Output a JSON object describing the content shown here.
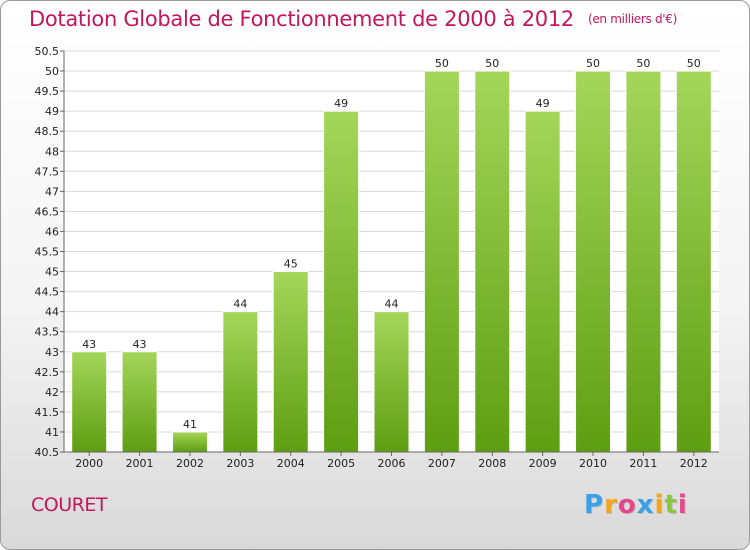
{
  "header": {
    "title": "Dotation Globale de Fonctionnement de 2000 à 2012",
    "unit_note": "(en milliers d'€)"
  },
  "footer": {
    "commune": "COURET",
    "logo_letters": [
      "P",
      "r",
      "o",
      "x",
      "i",
      "t",
      "i"
    ],
    "logo_colors": [
      "#3aa0e8",
      "#f2a516",
      "#e8468a",
      "#3aa0e8",
      "#f2a516",
      "#8cc63f",
      "#e8468a"
    ]
  },
  "chart_data": {
    "type": "bar",
    "categories": [
      "2000",
      "2001",
      "2002",
      "2003",
      "2004",
      "2005",
      "2006",
      "2007",
      "2008",
      "2009",
      "2010",
      "2011",
      "2012"
    ],
    "values": [
      43,
      43,
      41,
      44,
      45,
      49,
      44,
      50,
      50,
      49,
      50,
      50,
      50
    ],
    "data_labels": [
      "43",
      "43",
      "41",
      "44",
      "45",
      "49",
      "44",
      "50",
      "50",
      "49",
      "50",
      "50",
      "50"
    ],
    "ylim": [
      40.5,
      50.5
    ],
    "yticks": [
      "40.5",
      "41",
      "41.5",
      "42",
      "42.5",
      "43",
      "43.5",
      "44",
      "44.5",
      "45",
      "45.5",
      "46",
      "46.5",
      "47",
      "47.5",
      "48",
      "48.5",
      "49",
      "49.5",
      "50",
      "50.5"
    ],
    "grid": true,
    "bar_color_top": "#a4d65a",
    "bar_color_bottom": "#5e9e12"
  }
}
